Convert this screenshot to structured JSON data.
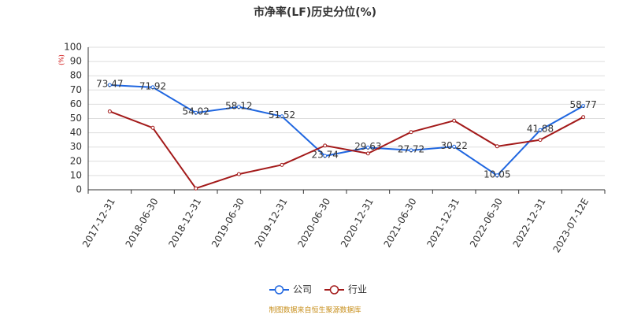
{
  "chart_data": {
    "type": "line",
    "title": "市净率(LF)历史分位(%)",
    "y_label": "(%)",
    "categories": [
      "2017-12-31",
      "2018-06-30",
      "2018-12-31",
      "2019-06-30",
      "2019-12-31",
      "2020-06-30",
      "2020-12-31",
      "2021-06-30",
      "2021-12-31",
      "2022-06-30",
      "2022-12-31",
      "2023-07-12E"
    ],
    "series": [
      {
        "name": "公司",
        "color": "#1f66e0",
        "values": [
          73.47,
          71.92,
          54.02,
          58.12,
          51.52,
          23.74,
          29.63,
          27.72,
          30.22,
          10.05,
          41.88,
          58.77
        ],
        "data_labels": true
      },
      {
        "name": "行业",
        "color": "#a31a1a",
        "values": [
          55,
          43.5,
          1,
          11,
          17.5,
          31,
          25.5,
          40.5,
          48.5,
          30.5,
          35,
          51
        ],
        "data_labels": false
      }
    ],
    "ylim": [
      0,
      100
    ],
    "yticks": [
      0,
      10,
      20,
      30,
      40,
      50,
      60,
      70,
      80,
      90,
      100
    ],
    "grid": true,
    "legend": "bottom",
    "source": "制图数据来自恒生聚源数据库"
  }
}
